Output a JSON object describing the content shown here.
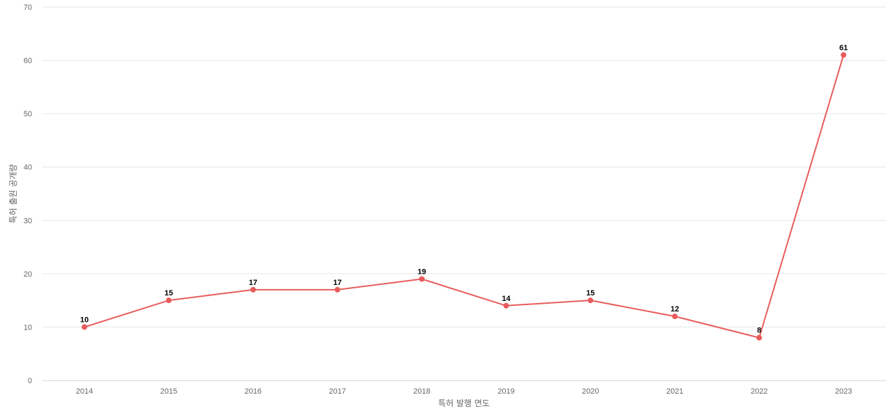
{
  "chart_data": {
    "type": "line",
    "title": "",
    "xlabel": "특허 발행 연도",
    "ylabel": "특허 출원 공개량",
    "categories": [
      "2014",
      "2015",
      "2016",
      "2017",
      "2018",
      "2019",
      "2020",
      "2021",
      "2022",
      "2023"
    ],
    "series": [
      {
        "values": [
          10,
          15,
          17,
          17,
          19,
          14,
          15,
          12,
          8,
          61
        ],
        "color": "#e85c5c"
      }
    ],
    "ylim": [
      0,
      70
    ],
    "yticks": [
      0,
      10,
      20,
      30,
      40,
      50,
      60,
      70
    ],
    "grid": true,
    "legend": "none",
    "data_labels": true
  }
}
